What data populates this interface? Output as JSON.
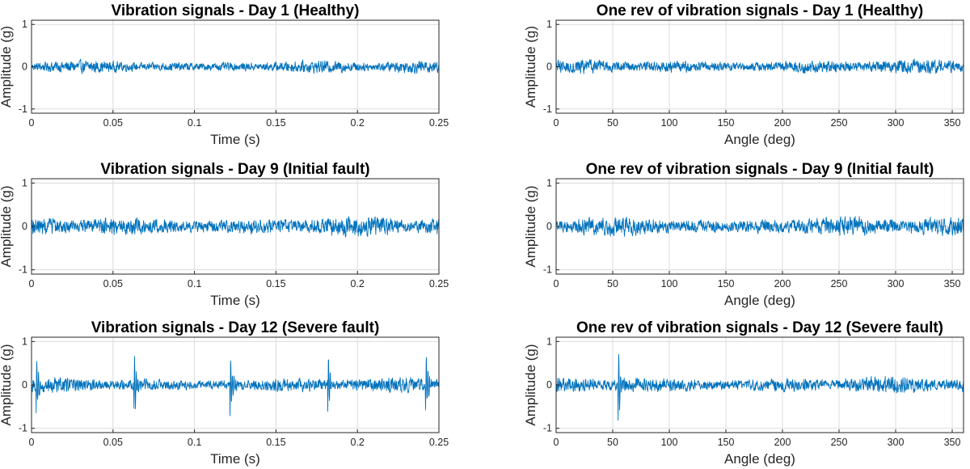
{
  "colors": {
    "series": "#0072BD",
    "grid": "#dcdcdc",
    "axis": "#262626"
  },
  "chart_data": [
    {
      "id": "time_day1",
      "type": "line",
      "title": "Vibration signals - Day 1 (Healthy)",
      "xlabel": "Time (s)",
      "ylabel": "Amplitude (g)",
      "xlim": [
        0,
        0.25
      ],
      "ylim": [
        -1.1,
        1.1
      ],
      "xticks": [
        0,
        0.05,
        0.1,
        0.15,
        0.2,
        0.25
      ],
      "xtick_labels": [
        "0",
        "0.05",
        "0.1",
        "0.15",
        "0.2",
        "0.25"
      ],
      "yticks": [
        -1,
        0,
        1
      ],
      "ytick_labels": [
        "-1",
        "0",
        "1"
      ],
      "grid": true,
      "series": [
        {
          "x_start": 0,
          "x_end": 0.25,
          "amplitude_envelope": 0.2,
          "impulse_x": [],
          "impulse_amp": 0
        }
      ]
    },
    {
      "id": "angle_day1",
      "type": "line",
      "title": "One rev of vibration signals - Day 1 (Healthy)",
      "xlabel": "Angle (deg)",
      "ylabel": "Amplitude (g)",
      "xlim": [
        0,
        360
      ],
      "ylim": [
        -1.1,
        1.1
      ],
      "xticks": [
        0,
        50,
        100,
        150,
        200,
        250,
        300,
        350
      ],
      "xtick_labels": [
        "0",
        "50",
        "100",
        "150",
        "200",
        "250",
        "300",
        "350"
      ],
      "yticks": [
        -1,
        0,
        1
      ],
      "ytick_labels": [
        "-1",
        "0",
        "1"
      ],
      "grid": true,
      "series": [
        {
          "x_start": 0,
          "x_end": 360,
          "amplitude_envelope": 0.22,
          "impulse_x": [],
          "impulse_amp": 0
        }
      ]
    },
    {
      "id": "time_day9",
      "type": "line",
      "title": "Vibration signals - Day 9 (Initial fault)",
      "xlabel": "Time (s)",
      "ylabel": "Amplitude (g)",
      "xlim": [
        0,
        0.25
      ],
      "ylim": [
        -1.1,
        1.1
      ],
      "xticks": [
        0,
        0.05,
        0.1,
        0.15,
        0.2,
        0.25
      ],
      "xtick_labels": [
        "0",
        "0.05",
        "0.1",
        "0.15",
        "0.2",
        "0.25"
      ],
      "yticks": [
        -1,
        0,
        1
      ],
      "ytick_labels": [
        "-1",
        "0",
        "1"
      ],
      "grid": true,
      "series": [
        {
          "x_start": 0,
          "x_end": 0.25,
          "amplitude_envelope": 0.3,
          "impulse_x": [],
          "impulse_amp": 0
        }
      ]
    },
    {
      "id": "angle_day9",
      "type": "line",
      "title": "One rev of vibration signals - Day 9 (Initial fault)",
      "xlabel": "Angle (deg)",
      "ylabel": "Amplitude (g)",
      "xlim": [
        0,
        360
      ],
      "ylim": [
        -1.1,
        1.1
      ],
      "xticks": [
        0,
        50,
        100,
        150,
        200,
        250,
        300,
        350
      ],
      "xtick_labels": [
        "0",
        "50",
        "100",
        "150",
        "200",
        "250",
        "300",
        "350"
      ],
      "yticks": [
        -1,
        0,
        1
      ],
      "ytick_labels": [
        "-1",
        "0",
        "1"
      ],
      "grid": true,
      "series": [
        {
          "x_start": 0,
          "x_end": 360,
          "amplitude_envelope": 0.3,
          "impulse_x": [],
          "impulse_amp": 0
        }
      ]
    },
    {
      "id": "time_day12",
      "type": "line",
      "title": "Vibration signals - Day 12 (Severe fault)",
      "xlabel": "Time (s)",
      "ylabel": "Amplitude (g)",
      "xlim": [
        0,
        0.25
      ],
      "ylim": [
        -1.1,
        1.1
      ],
      "xticks": [
        0,
        0.05,
        0.1,
        0.15,
        0.2,
        0.25
      ],
      "xtick_labels": [
        "0",
        "0.05",
        "0.1",
        "0.15",
        "0.2",
        "0.25"
      ],
      "yticks": [
        -1,
        0,
        1
      ],
      "ytick_labels": [
        "-1",
        "0",
        "1"
      ],
      "grid": true,
      "series": [
        {
          "x_start": 0,
          "x_end": 0.25,
          "amplitude_envelope": 0.22,
          "impulse_x": [
            0.003,
            0.063,
            0.122,
            0.182,
            0.242
          ],
          "impulse_amp": 0.85
        }
      ]
    },
    {
      "id": "angle_day12",
      "type": "line",
      "title": "One rev of vibration signals - Day 12 (Severe fault)",
      "xlabel": "Angle (deg)",
      "ylabel": "Amplitude (g)",
      "xlim": [
        0,
        360
      ],
      "ylim": [
        -1.1,
        1.1
      ],
      "xticks": [
        0,
        50,
        100,
        150,
        200,
        250,
        300,
        350
      ],
      "xtick_labels": [
        "0",
        "50",
        "100",
        "150",
        "200",
        "250",
        "300",
        "350"
      ],
      "yticks": [
        -1,
        0,
        1
      ],
      "ytick_labels": [
        "-1",
        "0",
        "1"
      ],
      "grid": true,
      "series": [
        {
          "x_start": 0,
          "x_end": 360,
          "amplitude_envelope": 0.25,
          "impulse_x": [
            55
          ],
          "impulse_amp": 0.88
        }
      ]
    }
  ]
}
